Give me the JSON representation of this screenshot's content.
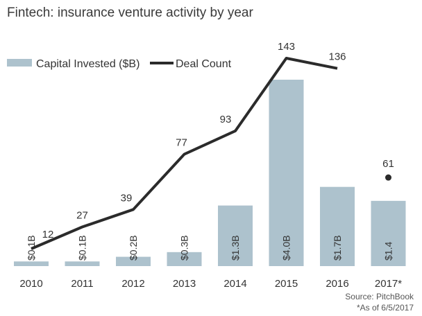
{
  "chart_data": {
    "type": "bar",
    "title": "Fintech: insurance venture activity by year",
    "categories": [
      "2010",
      "2011",
      "2012",
      "2013",
      "2014",
      "2015",
      "2016",
      "2017*"
    ],
    "series": [
      {
        "name": "Capital Invested ($B)",
        "type": "bar",
        "values": [
          0.1,
          0.1,
          0.2,
          0.3,
          1.3,
          4.0,
          1.7,
          1.4
        ],
        "labels": [
          "$0.1B",
          "$0.1B",
          "$0.2B",
          "$0.3B",
          "$1.3B",
          "$4.0B",
          "$1.7B",
          "$1.4"
        ],
        "color": "#adc2cd"
      },
      {
        "name": "Deal Count",
        "type": "line",
        "values": [
          12,
          27,
          39,
          77,
          93,
          143,
          136,
          61
        ],
        "labels": [
          "12",
          "27",
          "39",
          "77",
          "93",
          "143",
          "136",
          "61"
        ],
        "line_points": 7,
        "separate_point_index": 7,
        "color": "#2b2b2b"
      }
    ],
    "legend_position": "top-left",
    "grid": false,
    "ylim_capital": [
      0,
      4.4
    ],
    "ylim_deals": [
      0,
      155
    ]
  },
  "footer": {
    "source": "Source: PitchBook",
    "note": "*As of 6/5/2017"
  }
}
